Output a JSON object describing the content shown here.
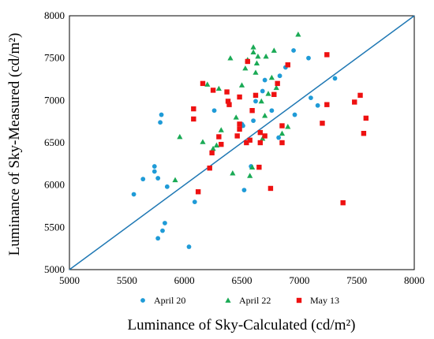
{
  "chart_data": {
    "type": "scatter",
    "xlabel": "Luminance of  Sky-Calculated (cd/m²)",
    "ylabel": "Luminance of  Sky-Measured (cd/m²)",
    "xlim": [
      5000,
      8000
    ],
    "ylim": [
      5000,
      8000
    ],
    "x_ticks": [
      "5000",
      "5500",
      "6000",
      "6500",
      "7000",
      "7500",
      "8000"
    ],
    "y_ticks": [
      "5000",
      "5500",
      "6000",
      "6500",
      "7000",
      "7500",
      "8000"
    ],
    "grid": false,
    "legend_position": "bottom",
    "reference_line": {
      "from": [
        5000,
        5000
      ],
      "to": [
        8000,
        8000
      ],
      "color": "#1f78b4"
    },
    "series": [
      {
        "name": "April 20",
        "marker": "circle",
        "color": "#1f9bd7",
        "points": [
          [
            5560,
            5890
          ],
          [
            5640,
            6070
          ],
          [
            5740,
            6220
          ],
          [
            5740,
            6160
          ],
          [
            5770,
            6080
          ],
          [
            5790,
            6740
          ],
          [
            5800,
            6830
          ],
          [
            5810,
            5460
          ],
          [
            5830,
            5550
          ],
          [
            5850,
            5980
          ],
          [
            5770,
            5370
          ],
          [
            6040,
            5270
          ],
          [
            6090,
            5800
          ],
          [
            6260,
            6880
          ],
          [
            6500,
            6720
          ],
          [
            6510,
            6700
          ],
          [
            6520,
            5940
          ],
          [
            6580,
            6220
          ],
          [
            6600,
            6760
          ],
          [
            6620,
            6990
          ],
          [
            6680,
            7110
          ],
          [
            6700,
            7240
          ],
          [
            6760,
            6880
          ],
          [
            6820,
            6560
          ],
          [
            6830,
            7290
          ],
          [
            6880,
            7390
          ],
          [
            6950,
            7590
          ],
          [
            6960,
            6830
          ],
          [
            7080,
            7500
          ],
          [
            7100,
            7030
          ],
          [
            7160,
            6940
          ],
          [
            7310,
            7260
          ]
        ]
      },
      {
        "name": "April 22",
        "marker": "triangle",
        "color": "#1aaa55",
        "points": [
          [
            5920,
            6060
          ],
          [
            5960,
            6570
          ],
          [
            6160,
            6510
          ],
          [
            6200,
            7190
          ],
          [
            6250,
            6430
          ],
          [
            6280,
            6470
          ],
          [
            6300,
            7140
          ],
          [
            6320,
            6650
          ],
          [
            6400,
            7500
          ],
          [
            6420,
            6140
          ],
          [
            6450,
            6800
          ],
          [
            6500,
            7180
          ],
          [
            6530,
            7380
          ],
          [
            6550,
            7480
          ],
          [
            6570,
            6110
          ],
          [
            6590,
            6210
          ],
          [
            6600,
            7630
          ],
          [
            6600,
            7570
          ],
          [
            6620,
            7330
          ],
          [
            6630,
            7440
          ],
          [
            6640,
            7520
          ],
          [
            6670,
            6990
          ],
          [
            6680,
            6550
          ],
          [
            6700,
            6820
          ],
          [
            6710,
            7520
          ],
          [
            6730,
            7080
          ],
          [
            6760,
            7270
          ],
          [
            6780,
            7590
          ],
          [
            6800,
            7150
          ],
          [
            6850,
            6610
          ],
          [
            6900,
            6690
          ],
          [
            6990,
            7780
          ]
        ]
      },
      {
        "name": "May 13",
        "marker": "square",
        "color": "#ee1111",
        "points": [
          [
            6080,
            6900
          ],
          [
            6080,
            6780
          ],
          [
            6120,
            5920
          ],
          [
            6160,
            7200
          ],
          [
            6220,
            6200
          ],
          [
            6240,
            6380
          ],
          [
            6250,
            7120
          ],
          [
            6300,
            6570
          ],
          [
            6320,
            6480
          ],
          [
            6370,
            7100
          ],
          [
            6380,
            6990
          ],
          [
            6390,
            6950
          ],
          [
            6460,
            6580
          ],
          [
            6480,
            6660
          ],
          [
            6480,
            6720
          ],
          [
            6480,
            7040
          ],
          [
            6540,
            6500
          ],
          [
            6550,
            7460
          ],
          [
            6570,
            6530
          ],
          [
            6590,
            6880
          ],
          [
            6620,
            7060
          ],
          [
            6650,
            6210
          ],
          [
            6660,
            6620
          ],
          [
            6660,
            6500
          ],
          [
            6700,
            6580
          ],
          [
            6750,
            5960
          ],
          [
            6780,
            7070
          ],
          [
            6810,
            7200
          ],
          [
            6850,
            6700
          ],
          [
            6850,
            6500
          ],
          [
            6900,
            7420
          ],
          [
            7200,
            6730
          ],
          [
            7240,
            7540
          ],
          [
            7240,
            6950
          ],
          [
            7380,
            5790
          ],
          [
            7480,
            6980
          ],
          [
            7530,
            7060
          ],
          [
            7560,
            6610
          ],
          [
            7580,
            6790
          ]
        ]
      }
    ]
  }
}
